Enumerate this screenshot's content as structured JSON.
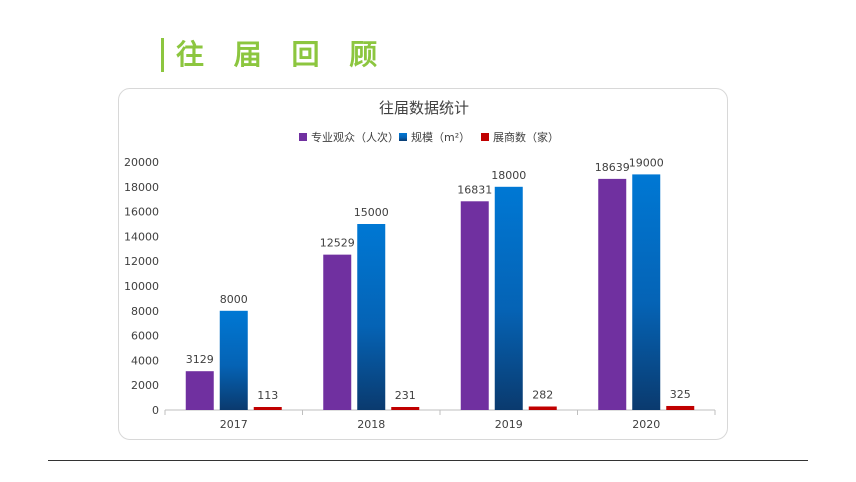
{
  "header": {
    "title": "往 届 回 顾"
  },
  "chart_data": {
    "type": "bar",
    "title": "往届数据统计",
    "xlabel": "",
    "ylabel": "",
    "categories": [
      "2017",
      "2018",
      "2019",
      "2020"
    ],
    "series": [
      {
        "name": "专业观众（人次）",
        "values": [
          3129,
          12529,
          16831,
          18639
        ],
        "color": "#7030a0"
      },
      {
        "name": "规模（m²）",
        "values": [
          8000,
          15000,
          18000,
          19000
        ],
        "color": "#0070c0"
      },
      {
        "name": "展商数（家）",
        "values": [
          113,
          231,
          282,
          325
        ],
        "color": "#c00000"
      }
    ],
    "ylim": [
      0,
      20000
    ],
    "yticks": [
      0,
      2000,
      4000,
      6000,
      8000,
      10000,
      12000,
      14000,
      16000,
      18000,
      20000
    ],
    "legend_position": "top",
    "grid": false
  }
}
